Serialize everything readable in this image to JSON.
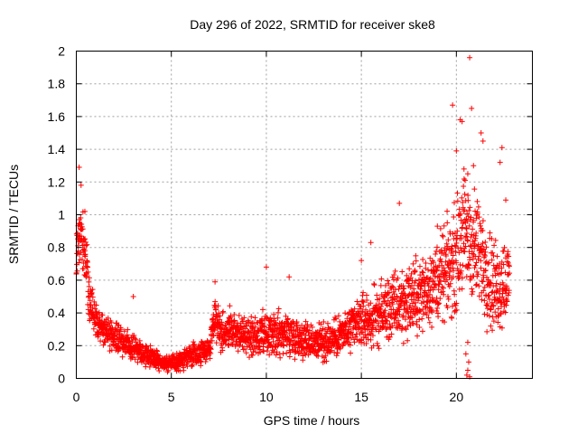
{
  "chart_data": {
    "type": "scatter",
    "title": "Day 296 of 2022, SRMTID for receiver ske8",
    "xlabel": "GPS time / hours",
    "ylabel": "SRMTID / TECUs",
    "xlim": [
      0,
      24
    ],
    "ylim": [
      0,
      2
    ],
    "x_ticks": [
      0,
      5,
      10,
      15,
      20
    ],
    "x_tick_labels": [
      "0",
      "5",
      "10",
      "15",
      "20"
    ],
    "y_ticks": [
      0,
      0.2,
      0.4,
      0.6,
      0.8,
      1,
      1.2,
      1.4,
      1.6,
      1.8,
      2
    ],
    "y_tick_labels": [
      "0",
      "0.2",
      "0.4",
      "0.6",
      "0.8",
      "1",
      "1.2",
      "1.4",
      "1.6",
      "1.8",
      "2"
    ],
    "grid": true,
    "marker": "plus",
    "marker_color": "#ff0000",
    "series": [
      {
        "name": "SRMTID",
        "profile": {
          "x": [
            0.0,
            0.1,
            0.2,
            0.35,
            0.5,
            0.7,
            1.0,
            1.5,
            2.0,
            2.5,
            3.0,
            3.5,
            4.0,
            4.5,
            5.0,
            5.5,
            6.0,
            6.5,
            7.0,
            7.3,
            7.6,
            8.0,
            9.0,
            10.0,
            11.0,
            12.0,
            13.0,
            14.0,
            14.5,
            15.0,
            15.5,
            16.0,
            16.5,
            17.0,
            17.5,
            18.0,
            18.5,
            19.0,
            19.5,
            20.0,
            20.3,
            20.6,
            21.0,
            21.5,
            22.0,
            22.5,
            22.8
          ],
          "y": [
            0.7,
            0.95,
            0.9,
            0.85,
            0.7,
            0.5,
            0.35,
            0.3,
            0.25,
            0.22,
            0.2,
            0.16,
            0.13,
            0.1,
            0.09,
            0.11,
            0.14,
            0.15,
            0.18,
            0.4,
            0.28,
            0.3,
            0.25,
            0.25,
            0.28,
            0.24,
            0.22,
            0.27,
            0.3,
            0.35,
            0.35,
            0.4,
            0.42,
            0.45,
            0.48,
            0.5,
            0.55,
            0.6,
            0.65,
            0.75,
            0.9,
            0.85,
            0.8,
            0.7,
            0.55,
            0.6,
            0.6
          ],
          "spread": [
            0.2,
            0.22,
            0.18,
            0.15,
            0.15,
            0.12,
            0.1,
            0.08,
            0.08,
            0.08,
            0.07,
            0.06,
            0.05,
            0.04,
            0.04,
            0.05,
            0.06,
            0.06,
            0.08,
            0.12,
            0.1,
            0.1,
            0.1,
            0.12,
            0.12,
            0.1,
            0.1,
            0.12,
            0.13,
            0.15,
            0.15,
            0.17,
            0.18,
            0.2,
            0.2,
            0.2,
            0.2,
            0.22,
            0.25,
            0.28,
            0.32,
            0.3,
            0.3,
            0.28,
            0.25,
            0.25,
            0.22
          ]
        },
        "peaks": [
          {
            "x": 0.15,
            "y": 1.29
          },
          {
            "x": 0.25,
            "y": 1.18
          },
          {
            "x": 0.45,
            "y": 1.02
          },
          {
            "x": 3.0,
            "y": 0.5
          },
          {
            "x": 7.3,
            "y": 0.59
          },
          {
            "x": 10.0,
            "y": 0.68
          },
          {
            "x": 11.2,
            "y": 0.62
          },
          {
            "x": 15.0,
            "y": 0.72
          },
          {
            "x": 15.5,
            "y": 0.83
          },
          {
            "x": 17.0,
            "y": 1.07
          },
          {
            "x": 19.0,
            "y": 0.93
          },
          {
            "x": 19.8,
            "y": 1.67
          },
          {
            "x": 20.0,
            "y": 1.39
          },
          {
            "x": 20.2,
            "y": 1.58
          },
          {
            "x": 20.3,
            "y": 1.57
          },
          {
            "x": 20.4,
            "y": 1.28
          },
          {
            "x": 20.6,
            "y": 1.25
          },
          {
            "x": 20.7,
            "y": 1.96
          },
          {
            "x": 20.8,
            "y": 1.65
          },
          {
            "x": 20.9,
            "y": 1.3
          },
          {
            "x": 21.3,
            "y": 1.5
          },
          {
            "x": 21.4,
            "y": 1.45
          },
          {
            "x": 22.4,
            "y": 1.41
          },
          {
            "x": 22.3,
            "y": 1.32
          },
          {
            "x": 22.6,
            "y": 1.09
          }
        ],
        "lows": [
          {
            "x": 20.55,
            "y": 0.02
          },
          {
            "x": 20.6,
            "y": 0.05
          },
          {
            "x": 20.65,
            "y": 0.1
          },
          {
            "x": 20.7,
            "y": 0.01
          },
          {
            "x": 20.5,
            "y": 0.15
          },
          {
            "x": 20.6,
            "y": 0.22
          },
          {
            "x": 4.8,
            "y": 0.04
          }
        ]
      }
    ]
  }
}
